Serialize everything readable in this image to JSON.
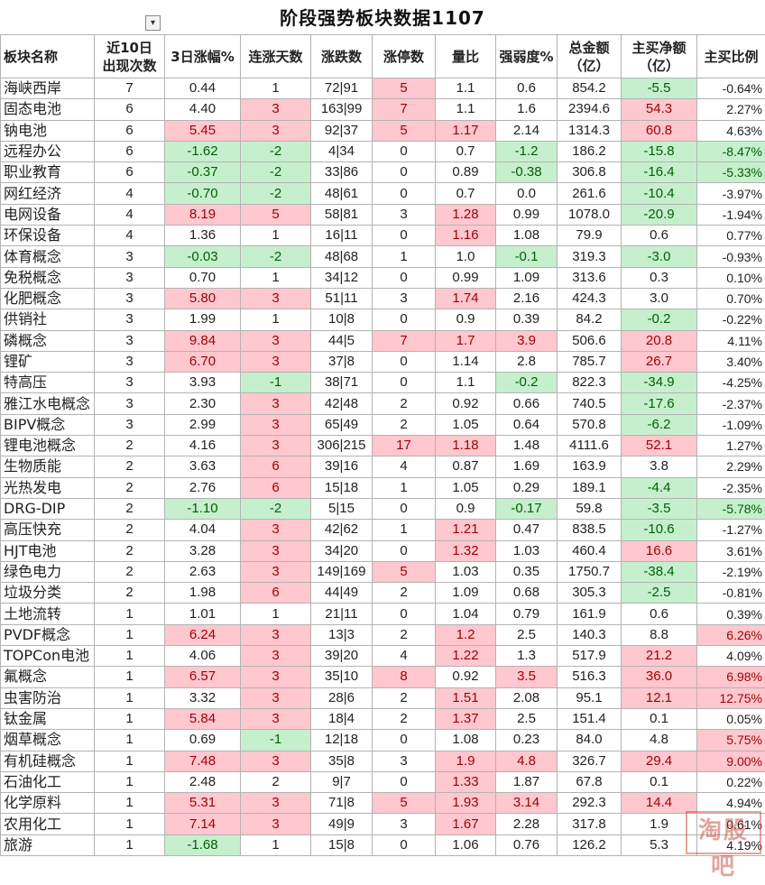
{
  "title": "阶段强势板块数据1107",
  "filter_icon": "filter-dropdown-icon",
  "headers": [
    "板块名称",
    "近10日\n出现次数",
    "3日涨幅%",
    "连涨天数",
    "涨跌数",
    "涨停数",
    "量比",
    "强弱度%",
    "总金额\n（亿）",
    "主买净额\n（亿）",
    "主买比例"
  ],
  "colors": {
    "red_fill": "#ffc7ce",
    "red_text": "#9c0006",
    "green_fill": "#c6efce",
    "green_text": "#006100"
  },
  "rows": [
    {
      "name": "海峡西岸",
      "count": "7",
      "gain": "0.44",
      "up_days": "1",
      "updown": "72|91",
      "limit": "5",
      "vol": "1.1",
      "strength": "0.6",
      "amount": "854.2",
      "net": "-5.5",
      "ratio": "-0.64%",
      "hl": {
        "limit": "red",
        "net": "green"
      }
    },
    {
      "name": "固态电池",
      "count": "6",
      "gain": "4.40",
      "up_days": "3",
      "updown": "163|99",
      "limit": "7",
      "vol": "1.1",
      "strength": "1.6",
      "amount": "2394.6",
      "net": "54.3",
      "ratio": "2.27%",
      "hl": {
        "up_days": "red",
        "limit": "red",
        "net": "red"
      }
    },
    {
      "name": "钠电池",
      "count": "6",
      "gain": "5.45",
      "up_days": "3",
      "updown": "92|37",
      "limit": "5",
      "vol": "1.17",
      "strength": "2.14",
      "amount": "1314.3",
      "net": "60.8",
      "ratio": "4.63%",
      "hl": {
        "gain": "red",
        "up_days": "red",
        "limit": "red",
        "vol": "red",
        "net": "red"
      }
    },
    {
      "name": "远程办公",
      "count": "6",
      "gain": "-1.62",
      "up_days": "-2",
      "updown": "4|34",
      "limit": "0",
      "vol": "0.7",
      "strength": "-1.2",
      "amount": "186.2",
      "net": "-15.8",
      "ratio": "-8.47%",
      "hl": {
        "gain": "green",
        "up_days": "green",
        "strength": "green",
        "net": "green",
        "ratio": "green"
      }
    },
    {
      "name": "职业教育",
      "count": "6",
      "gain": "-0.37",
      "up_days": "-2",
      "updown": "33|86",
      "limit": "0",
      "vol": "0.89",
      "strength": "-0.38",
      "amount": "306.8",
      "net": "-16.4",
      "ratio": "-5.33%",
      "hl": {
        "gain": "green",
        "up_days": "green",
        "strength": "green",
        "net": "green",
        "ratio": "green"
      }
    },
    {
      "name": "网红经济",
      "count": "4",
      "gain": "-0.70",
      "up_days": "-2",
      "updown": "48|61",
      "limit": "0",
      "vol": "0.7",
      "strength": "0.0",
      "amount": "261.6",
      "net": "-10.4",
      "ratio": "-3.97%",
      "hl": {
        "gain": "green",
        "up_days": "green",
        "net": "green"
      }
    },
    {
      "name": "电网设备",
      "count": "4",
      "gain": "8.19",
      "up_days": "5",
      "updown": "58|81",
      "limit": "3",
      "vol": "1.28",
      "strength": "0.99",
      "amount": "1078.0",
      "net": "-20.9",
      "ratio": "-1.94%",
      "hl": {
        "gain": "red",
        "up_days": "red",
        "vol": "red",
        "net": "green"
      }
    },
    {
      "name": "环保设备",
      "count": "4",
      "gain": "1.36",
      "up_days": "1",
      "updown": "16|11",
      "limit": "0",
      "vol": "1.16",
      "strength": "1.08",
      "amount": "79.9",
      "net": "0.6",
      "ratio": "0.77%",
      "hl": {
        "vol": "red"
      }
    },
    {
      "name": "体育概念",
      "count": "3",
      "gain": "-0.03",
      "up_days": "-2",
      "updown": "48|68",
      "limit": "1",
      "vol": "1.0",
      "strength": "-0.1",
      "amount": "319.3",
      "net": "-3.0",
      "ratio": "-0.93%",
      "hl": {
        "gain": "green",
        "up_days": "green",
        "strength": "green",
        "net": "green"
      }
    },
    {
      "name": "免税概念",
      "count": "3",
      "gain": "0.70",
      "up_days": "1",
      "updown": "34|12",
      "limit": "0",
      "vol": "0.99",
      "strength": "1.09",
      "amount": "313.6",
      "net": "0.3",
      "ratio": "0.10%",
      "hl": {}
    },
    {
      "name": "化肥概念",
      "count": "3",
      "gain": "5.80",
      "up_days": "3",
      "updown": "51|11",
      "limit": "3",
      "vol": "1.74",
      "strength": "2.16",
      "amount": "424.3",
      "net": "3.0",
      "ratio": "0.70%",
      "hl": {
        "gain": "red",
        "up_days": "red",
        "vol": "red"
      }
    },
    {
      "name": "供销社",
      "count": "3",
      "gain": "1.99",
      "up_days": "1",
      "updown": "10|8",
      "limit": "0",
      "vol": "0.9",
      "strength": "0.39",
      "amount": "84.2",
      "net": "-0.2",
      "ratio": "-0.22%",
      "hl": {
        "net": "green"
      }
    },
    {
      "name": "磷概念",
      "count": "3",
      "gain": "9.84",
      "up_days": "3",
      "updown": "44|5",
      "limit": "7",
      "vol": "1.7",
      "strength": "3.9",
      "amount": "506.6",
      "net": "20.8",
      "ratio": "4.11%",
      "hl": {
        "gain": "red",
        "up_days": "red",
        "limit": "red",
        "vol": "red",
        "strength": "red",
        "net": "red"
      }
    },
    {
      "name": "锂矿",
      "count": "3",
      "gain": "6.70",
      "up_days": "3",
      "updown": "37|8",
      "limit": "0",
      "vol": "1.14",
      "strength": "2.8",
      "amount": "785.7",
      "net": "26.7",
      "ratio": "3.40%",
      "hl": {
        "gain": "red",
        "up_days": "red",
        "net": "red"
      }
    },
    {
      "name": "特高压",
      "count": "3",
      "gain": "3.93",
      "up_days": "-1",
      "updown": "38|71",
      "limit": "0",
      "vol": "1.1",
      "strength": "-0.2",
      "amount": "822.3",
      "net": "-34.9",
      "ratio": "-4.25%",
      "hl": {
        "up_days": "green",
        "strength": "green",
        "net": "green"
      }
    },
    {
      "name": "雅江水电概念",
      "count": "3",
      "gain": "2.30",
      "up_days": "3",
      "updown": "42|48",
      "limit": "2",
      "vol": "0.92",
      "strength": "0.66",
      "amount": "740.5",
      "net": "-17.6",
      "ratio": "-2.37%",
      "hl": {
        "up_days": "red",
        "net": "green"
      }
    },
    {
      "name": "BIPV概念",
      "count": "3",
      "gain": "2.99",
      "up_days": "3",
      "updown": "65|49",
      "limit": "2",
      "vol": "1.05",
      "strength": "0.64",
      "amount": "570.8",
      "net": "-6.2",
      "ratio": "-1.09%",
      "hl": {
        "up_days": "red",
        "net": "green"
      }
    },
    {
      "name": "锂电池概念",
      "count": "2",
      "gain": "4.16",
      "up_days": "3",
      "updown": "306|215",
      "limit": "17",
      "vol": "1.18",
      "strength": "1.48",
      "amount": "4111.6",
      "net": "52.1",
      "ratio": "1.27%",
      "hl": {
        "up_days": "red",
        "limit": "red",
        "vol": "red",
        "net": "red"
      }
    },
    {
      "name": "生物质能",
      "count": "2",
      "gain": "3.63",
      "up_days": "6",
      "updown": "39|16",
      "limit": "4",
      "vol": "0.87",
      "strength": "1.69",
      "amount": "163.9",
      "net": "3.8",
      "ratio": "2.29%",
      "hl": {
        "up_days": "red"
      }
    },
    {
      "name": "光热发电",
      "count": "2",
      "gain": "2.76",
      "up_days": "6",
      "updown": "15|18",
      "limit": "1",
      "vol": "1.05",
      "strength": "0.29",
      "amount": "189.1",
      "net": "-4.4",
      "ratio": "-2.35%",
      "hl": {
        "up_days": "red",
        "net": "green"
      }
    },
    {
      "name": "DRG-DIP",
      "count": "2",
      "gain": "-1.10",
      "up_days": "-2",
      "updown": "5|15",
      "limit": "0",
      "vol": "0.9",
      "strength": "-0.17",
      "amount": "59.8",
      "net": "-3.5",
      "ratio": "-5.78%",
      "hl": {
        "gain": "green",
        "up_days": "green",
        "strength": "green",
        "net": "green",
        "ratio": "green"
      }
    },
    {
      "name": "高压快充",
      "count": "2",
      "gain": "4.04",
      "up_days": "3",
      "updown": "42|62",
      "limit": "1",
      "vol": "1.21",
      "strength": "0.47",
      "amount": "838.5",
      "net": "-10.6",
      "ratio": "-1.27%",
      "hl": {
        "up_days": "red",
        "vol": "red",
        "net": "green"
      }
    },
    {
      "name": "HJT电池",
      "count": "2",
      "gain": "3.28",
      "up_days": "3",
      "updown": "34|20",
      "limit": "0",
      "vol": "1.32",
      "strength": "1.03",
      "amount": "460.4",
      "net": "16.6",
      "ratio": "3.61%",
      "hl": {
        "up_days": "red",
        "vol": "red",
        "net": "red"
      }
    },
    {
      "name": "绿色电力",
      "count": "2",
      "gain": "2.63",
      "up_days": "3",
      "updown": "149|169",
      "limit": "5",
      "vol": "1.03",
      "strength": "0.35",
      "amount": "1750.7",
      "net": "-38.4",
      "ratio": "-2.19%",
      "hl": {
        "up_days": "red",
        "limit": "red",
        "net": "green"
      }
    },
    {
      "name": "垃圾分类",
      "count": "2",
      "gain": "1.98",
      "up_days": "6",
      "updown": "44|49",
      "limit": "2",
      "vol": "1.09",
      "strength": "0.68",
      "amount": "305.3",
      "net": "-2.5",
      "ratio": "-0.81%",
      "hl": {
        "up_days": "red",
        "net": "green"
      }
    },
    {
      "name": "土地流转",
      "count": "1",
      "gain": "1.01",
      "up_days": "1",
      "updown": "21|11",
      "limit": "0",
      "vol": "1.04",
      "strength": "0.79",
      "amount": "161.9",
      "net": "0.6",
      "ratio": "0.39%",
      "hl": {}
    },
    {
      "name": "PVDF概念",
      "count": "1",
      "gain": "6.24",
      "up_days": "3",
      "updown": "13|3",
      "limit": "2",
      "vol": "1.2",
      "strength": "2.5",
      "amount": "140.3",
      "net": "8.8",
      "ratio": "6.26%",
      "hl": {
        "gain": "red",
        "up_days": "red",
        "vol": "red",
        "ratio": "red"
      }
    },
    {
      "name": "TOPCon电池",
      "count": "1",
      "gain": "4.06",
      "up_days": "3",
      "updown": "39|20",
      "limit": "4",
      "vol": "1.22",
      "strength": "1.3",
      "amount": "517.9",
      "net": "21.2",
      "ratio": "4.09%",
      "hl": {
        "up_days": "red",
        "vol": "red",
        "net": "red"
      }
    },
    {
      "name": "氟概念",
      "count": "1",
      "gain": "6.57",
      "up_days": "3",
      "updown": "35|10",
      "limit": "8",
      "vol": "0.92",
      "strength": "3.5",
      "amount": "516.3",
      "net": "36.0",
      "ratio": "6.98%",
      "hl": {
        "gain": "red",
        "up_days": "red",
        "limit": "red",
        "strength": "red",
        "net": "red",
        "ratio": "red"
      }
    },
    {
      "name": "虫害防治",
      "count": "1",
      "gain": "3.32",
      "up_days": "3",
      "updown": "28|6",
      "limit": "2",
      "vol": "1.51",
      "strength": "2.08",
      "amount": "95.1",
      "net": "12.1",
      "ratio": "12.75%",
      "hl": {
        "up_days": "red",
        "vol": "red",
        "net": "red",
        "ratio": "red"
      }
    },
    {
      "name": "钛金属",
      "count": "1",
      "gain": "5.84",
      "up_days": "3",
      "updown": "18|4",
      "limit": "2",
      "vol": "1.37",
      "strength": "2.5",
      "amount": "151.4",
      "net": "0.1",
      "ratio": "0.05%",
      "hl": {
        "gain": "red",
        "up_days": "red",
        "vol": "red"
      }
    },
    {
      "name": "烟草概念",
      "count": "1",
      "gain": "0.69",
      "up_days": "-1",
      "updown": "12|18",
      "limit": "0",
      "vol": "1.08",
      "strength": "0.23",
      "amount": "84.0",
      "net": "4.8",
      "ratio": "5.75%",
      "hl": {
        "up_days": "green",
        "ratio": "red"
      }
    },
    {
      "name": "有机硅概念",
      "count": "1",
      "gain": "7.48",
      "up_days": "3",
      "updown": "35|8",
      "limit": "3",
      "vol": "1.9",
      "strength": "4.8",
      "amount": "326.7",
      "net": "29.4",
      "ratio": "9.00%",
      "hl": {
        "gain": "red",
        "up_days": "red",
        "vol": "red",
        "strength": "red",
        "net": "red",
        "ratio": "red"
      }
    },
    {
      "name": "石油化工",
      "count": "1",
      "gain": "2.48",
      "up_days": "2",
      "updown": "9|7",
      "limit": "0",
      "vol": "1.33",
      "strength": "1.87",
      "amount": "67.8",
      "net": "0.1",
      "ratio": "0.22%",
      "hl": {
        "vol": "red"
      }
    },
    {
      "name": "化学原料",
      "count": "1",
      "gain": "5.31",
      "up_days": "3",
      "updown": "71|8",
      "limit": "5",
      "vol": "1.93",
      "strength": "3.14",
      "amount": "292.3",
      "net": "14.4",
      "ratio": "4.94%",
      "hl": {
        "gain": "red",
        "up_days": "red",
        "limit": "red",
        "vol": "red",
        "strength": "red",
        "net": "red"
      }
    },
    {
      "name": "农用化工",
      "count": "1",
      "gain": "7.14",
      "up_days": "3",
      "updown": "49|9",
      "limit": "3",
      "vol": "1.67",
      "strength": "2.28",
      "amount": "317.8",
      "net": "1.9",
      "ratio": "0.61%",
      "hl": {
        "gain": "red",
        "up_days": "red",
        "vol": "red"
      }
    },
    {
      "name": "旅游",
      "count": "1",
      "gain": "-1.68",
      "up_days": "1",
      "updown": "15|8",
      "limit": "0",
      "vol": "1.06",
      "strength": "0.76",
      "amount": "126.2",
      "net": "5.3",
      "ratio": "4.19%",
      "hl": {
        "gain": "green"
      }
    }
  ],
  "watermark": "淘股吧"
}
